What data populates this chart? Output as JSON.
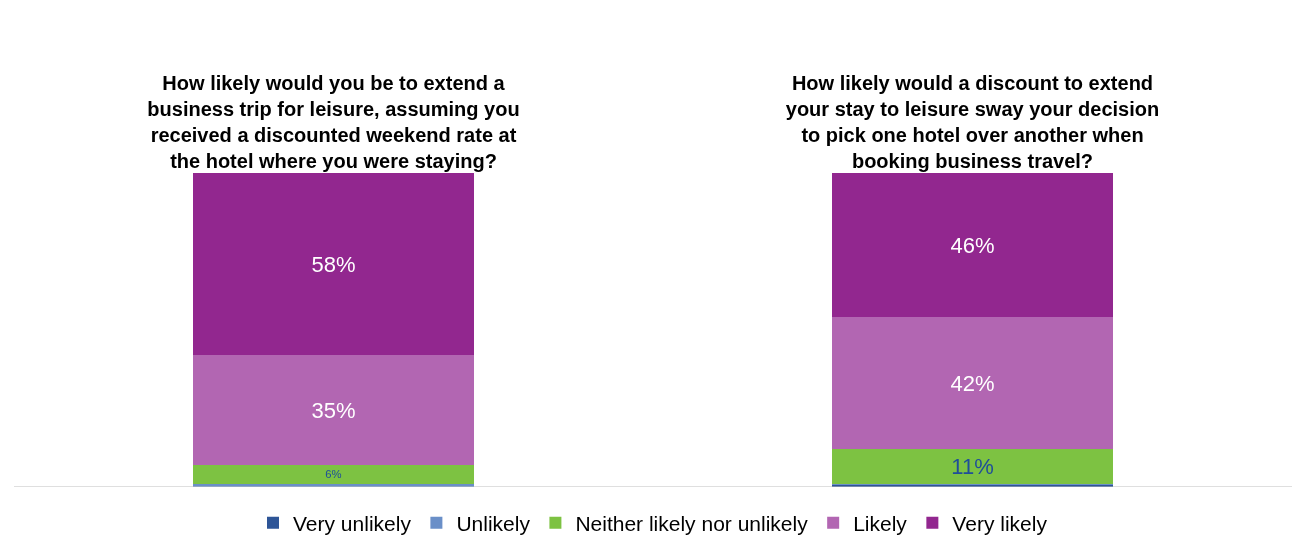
{
  "chart_data": {
    "type": "bar",
    "stacked": true,
    "categories": [
      "How likely would you be to extend a business trip for leisure, assuming you received a discounted weekend rate at the hotel where you were staying?",
      "How likely would a discount to extend your stay to leisure sway your decision to pick one hotel over another when booking business travel?"
    ],
    "series": [
      {
        "name": "Very unlikely",
        "color": "#2e5597",
        "values": [
          0,
          0.5
        ],
        "value_labels": [
          null,
          null
        ]
      },
      {
        "name": "Unlikely",
        "color": "#6a8fc8",
        "values": [
          1,
          0.5
        ],
        "value_labels": [
          null,
          null
        ]
      },
      {
        "name": "Neither likely nor unlikely",
        "color": "#7dc242",
        "values": [
          6,
          11
        ],
        "value_labels": [
          "6%",
          "11%"
        ]
      },
      {
        "name": "Likely",
        "color": "#b266b2",
        "values": [
          35,
          42
        ],
        "value_labels": [
          "35%",
          "42%"
        ]
      },
      {
        "name": "Very likely",
        "color": "#92278f",
        "values": [
          58,
          46
        ],
        "value_labels": [
          "58%",
          "46%"
        ]
      }
    ],
    "ylim": [
      0,
      100
    ],
    "tick_labels": "x",
    "grid": false,
    "legend": "bottom"
  }
}
